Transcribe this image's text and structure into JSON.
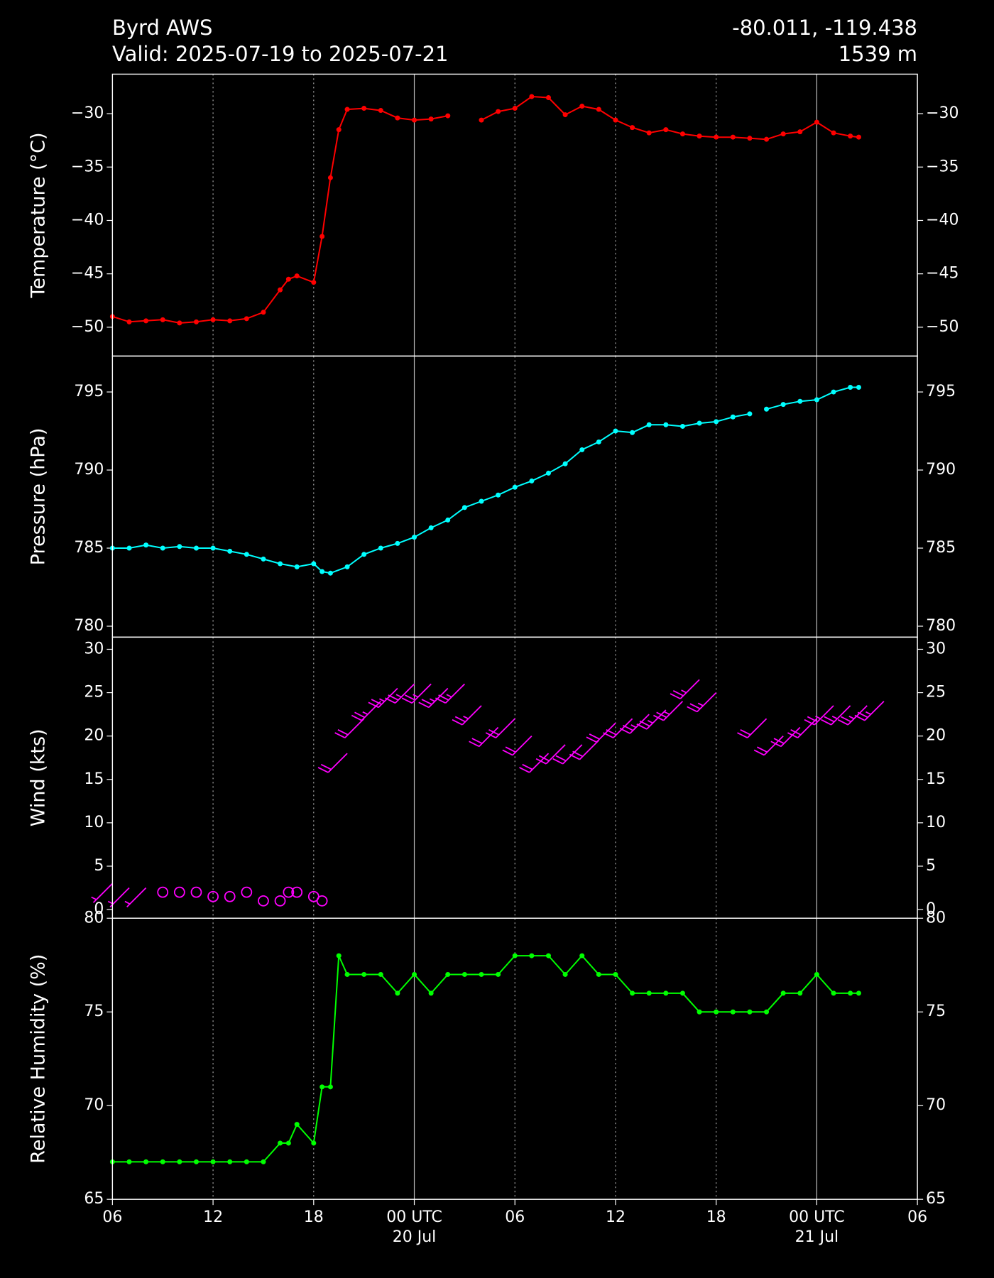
{
  "header": {
    "title": "Byrd AWS",
    "subtitle": "Valid: 2025-07-19 to 2025-07-21",
    "coords": "-80.011, -119.438",
    "elevation": "1539 m"
  },
  "chart_data": [
    {
      "type": "line",
      "ylabel": "Temperature (°C)",
      "color": "#ff0000",
      "ylim": [
        -52.7,
        -26.3
      ],
      "yticks": [
        {
          "value": -50,
          "label": "−50"
        },
        {
          "value": -45,
          "label": "−45"
        },
        {
          "value": -40,
          "label": "−40"
        },
        {
          "value": -35,
          "label": "−35"
        },
        {
          "value": -30,
          "label": "−30"
        }
      ],
      "x": [
        "2025-07-19T06:00",
        "2025-07-19T07:00",
        "2025-07-19T08:00",
        "2025-07-19T09:00",
        "2025-07-19T10:00",
        "2025-07-19T11:00",
        "2025-07-19T12:00",
        "2025-07-19T13:00",
        "2025-07-19T14:00",
        "2025-07-19T15:00",
        "2025-07-19T16:00",
        "2025-07-19T16:30",
        "2025-07-19T17:00",
        "2025-07-19T18:00",
        "2025-07-19T18:30",
        "2025-07-19T19:00",
        "2025-07-19T19:30",
        "2025-07-19T20:00",
        "2025-07-19T21:00",
        "2025-07-19T22:00",
        "2025-07-19T23:00",
        "2025-07-20T00:00",
        "2025-07-20T01:00",
        "2025-07-20T02:00",
        "2025-07-20T03:00",
        "2025-07-20T04:00",
        "2025-07-20T05:00",
        "2025-07-20T06:00",
        "2025-07-20T07:00",
        "2025-07-20T08:00",
        "2025-07-20T09:00",
        "2025-07-20T10:00",
        "2025-07-20T11:00",
        "2025-07-20T12:00",
        "2025-07-20T13:00",
        "2025-07-20T14:00",
        "2025-07-20T15:00",
        "2025-07-20T16:00",
        "2025-07-20T17:00",
        "2025-07-20T18:00",
        "2025-07-20T19:00",
        "2025-07-20T20:00",
        "2025-07-20T21:00",
        "2025-07-20T22:00",
        "2025-07-20T23:00",
        "2025-07-21T00:00",
        "2025-07-21T01:00",
        "2025-07-21T02:00",
        "2025-07-21T02:30"
      ],
      "values": [
        -49.0,
        -49.5,
        -49.4,
        -49.3,
        -49.6,
        -49.5,
        -49.3,
        -49.4,
        -49.2,
        -48.6,
        -46.5,
        -45.5,
        -45.2,
        -45.8,
        -41.5,
        -36,
        -31.5,
        -29.6,
        -29.5,
        -29.7,
        -30.4,
        -30.6,
        -30.5,
        -30.2,
        null,
        -30.6,
        -29.8,
        -29.5,
        -28.4,
        -28.5,
        -30.1,
        -29.3,
        -29.6,
        -30.6,
        -31.3,
        -31.8,
        -31.5,
        -31.9,
        -32.1,
        -32.2,
        -32.2,
        -32.3,
        -32.4,
        -31.9,
        -31.7,
        -30.8,
        -31.8,
        -32.1,
        -32.2
      ]
    },
    {
      "type": "line",
      "ylabel": "Pressure (hPa)",
      "color": "#00ffff",
      "ylim": [
        779.3,
        797.3
      ],
      "yticks": [
        780,
        785,
        790,
        795
      ],
      "x": [
        "2025-07-19T06:00",
        "2025-07-19T07:00",
        "2025-07-19T08:00",
        "2025-07-19T09:00",
        "2025-07-19T10:00",
        "2025-07-19T11:00",
        "2025-07-19T12:00",
        "2025-07-19T13:00",
        "2025-07-19T14:00",
        "2025-07-19T15:00",
        "2025-07-19T16:00",
        "2025-07-19T17:00",
        "2025-07-19T18:00",
        "2025-07-19T18:30",
        "2025-07-19T19:00",
        "2025-07-19T20:00",
        "2025-07-19T21:00",
        "2025-07-19T22:00",
        "2025-07-19T23:00",
        "2025-07-20T00:00",
        "2025-07-20T01:00",
        "2025-07-20T02:00",
        "2025-07-20T03:00",
        "2025-07-20T04:00",
        "2025-07-20T05:00",
        "2025-07-20T06:00",
        "2025-07-20T07:00",
        "2025-07-20T08:00",
        "2025-07-20T09:00",
        "2025-07-20T10:00",
        "2025-07-20T11:00",
        "2025-07-20T12:00",
        "2025-07-20T13:00",
        "2025-07-20T14:00",
        "2025-07-20T15:00",
        "2025-07-20T16:00",
        "2025-07-20T17:00",
        "2025-07-20T18:00",
        "2025-07-20T19:00",
        "2025-07-20T20:00",
        "2025-07-20T20:30",
        "2025-07-20T21:00",
        "2025-07-20T22:00",
        "2025-07-20T23:00",
        "2025-07-21T00:00",
        "2025-07-21T01:00",
        "2025-07-21T02:00",
        "2025-07-21T02:30"
      ],
      "values": [
        785,
        785,
        785.2,
        785,
        785.1,
        785,
        785,
        784.8,
        784.6,
        784.3,
        784,
        783.8,
        784,
        783.5,
        783.4,
        783.8,
        784.6,
        785,
        785.3,
        785.7,
        786.3,
        786.8,
        787.6,
        788,
        788.4,
        788.9,
        789.3,
        789.8,
        790.4,
        791.3,
        791.8,
        792.5,
        792.4,
        792.9,
        792.9,
        792.8,
        793,
        793.1,
        793.4,
        793.6,
        null,
        793.9,
        794.2,
        794.4,
        794.5,
        795,
        795.3,
        795.3
      ]
    },
    {
      "type": "barbs",
      "ylabel": "Wind (kts)",
      "color": "#ff00ff",
      "barb_direction": 225,
      "ylim": [
        -1,
        31.4
      ],
      "yticks": [
        0,
        5,
        10,
        15,
        20,
        25,
        30
      ],
      "x": [
        "2025-07-19T06:00",
        "2025-07-19T07:00",
        "2025-07-19T08:00",
        "2025-07-19T09:00",
        "2025-07-19T10:00",
        "2025-07-19T11:00",
        "2025-07-19T12:00",
        "2025-07-19T13:00",
        "2025-07-19T14:00",
        "2025-07-19T15:00",
        "2025-07-19T16:00",
        "2025-07-19T16:30",
        "2025-07-19T17:00",
        "2025-07-19T18:00",
        "2025-07-19T18:30",
        "2025-07-19T20:00",
        "2025-07-19T21:00",
        "2025-07-19T22:00",
        "2025-07-19T23:00",
        "2025-07-20T00:00",
        "2025-07-20T01:00",
        "2025-07-20T02:00",
        "2025-07-20T03:00",
        "2025-07-20T04:00",
        "2025-07-20T05:00",
        "2025-07-20T06:00",
        "2025-07-20T07:00",
        "2025-07-20T08:00",
        "2025-07-20T09:00",
        "2025-07-20T10:00",
        "2025-07-20T11:00",
        "2025-07-20T12:00",
        "2025-07-20T13:00",
        "2025-07-20T14:00",
        "2025-07-20T15:00",
        "2025-07-20T16:00",
        "2025-07-20T17:00",
        "2025-07-20T18:00",
        "2025-07-20T21:00",
        "2025-07-20T22:00",
        "2025-07-20T23:00",
        "2025-07-21T00:00",
        "2025-07-21T01:00",
        "2025-07-21T02:00",
        "2025-07-21T03:00",
        "2025-07-21T04:00"
      ],
      "values": [
        3,
        2.5,
        2.5,
        2,
        2,
        2,
        1.5,
        1.5,
        2,
        1,
        1,
        2,
        2,
        1.5,
        1,
        18,
        22,
        24,
        25.5,
        26,
        26,
        25.5,
        26,
        23.5,
        21,
        22,
        20,
        18,
        19,
        19,
        19.5,
        21.5,
        22,
        22.5,
        23,
        24,
        26.5,
        25,
        22,
        20,
        21,
        22,
        23.5,
        23.5,
        23.5,
        24
      ]
    },
    {
      "type": "line",
      "ylabel": "Relative Humidity (%)",
      "color": "#00ff00",
      "ylim": [
        65,
        80
      ],
      "yticks": [
        65,
        70,
        75,
        80
      ],
      "xlim": [
        "2025-07-19T06:00",
        "2025-07-21T06:00"
      ],
      "xticks": [
        {
          "value": "2025-07-19T06:00",
          "label": "06"
        },
        {
          "value": "2025-07-19T12:00",
          "label": "12"
        },
        {
          "value": "2025-07-19T18:00",
          "label": "18"
        },
        {
          "value": "2025-07-20T00:00",
          "label": "00 UTC",
          "date": "20 Jul"
        },
        {
          "value": "2025-07-20T06:00",
          "label": "06"
        },
        {
          "value": "2025-07-20T12:00",
          "label": "12"
        },
        {
          "value": "2025-07-20T18:00",
          "label": "18"
        },
        {
          "value": "2025-07-21T00:00",
          "label": "00 UTC",
          "date": "21 Jul"
        },
        {
          "value": "2025-07-21T06:00",
          "label": "06"
        }
      ],
      "x": [
        "2025-07-19T06:00",
        "2025-07-19T07:00",
        "2025-07-19T08:00",
        "2025-07-19T09:00",
        "2025-07-19T10:00",
        "2025-07-19T11:00",
        "2025-07-19T12:00",
        "2025-07-19T13:00",
        "2025-07-19T14:00",
        "2025-07-19T15:00",
        "2025-07-19T16:00",
        "2025-07-19T16:30",
        "2025-07-19T17:00",
        "2025-07-19T18:00",
        "2025-07-19T18:30",
        "2025-07-19T19:00",
        "2025-07-19T19:30",
        "2025-07-19T20:00",
        "2025-07-19T21:00",
        "2025-07-19T22:00",
        "2025-07-19T23:00",
        "2025-07-20T00:00",
        "2025-07-20T01:00",
        "2025-07-20T02:00",
        "2025-07-20T03:00",
        "2025-07-20T04:00",
        "2025-07-20T05:00",
        "2025-07-20T06:00",
        "2025-07-20T07:00",
        "2025-07-20T08:00",
        "2025-07-20T09:00",
        "2025-07-20T10:00",
        "2025-07-20T11:00",
        "2025-07-20T12:00",
        "2025-07-20T13:00",
        "2025-07-20T14:00",
        "2025-07-20T15:00",
        "2025-07-20T16:00",
        "2025-07-20T17:00",
        "2025-07-20T18:00",
        "2025-07-20T19:00",
        "2025-07-20T20:00",
        "2025-07-20T21:00",
        "2025-07-20T22:00",
        "2025-07-20T23:00",
        "2025-07-21T00:00",
        "2025-07-21T01:00",
        "2025-07-21T02:00",
        "2025-07-21T02:30"
      ],
      "values": [
        67,
        67,
        67,
        67,
        67,
        67,
        67,
        67,
        67,
        67,
        68,
        68,
        69,
        68,
        71,
        71,
        78,
        77,
        77,
        77,
        76,
        77,
        76,
        77,
        77,
        77,
        77,
        78,
        78,
        78,
        77,
        78,
        77,
        77,
        76,
        76,
        76,
        76,
        75,
        75,
        75,
        75,
        75,
        76,
        76,
        77,
        76,
        76,
        76
      ]
    }
  ]
}
